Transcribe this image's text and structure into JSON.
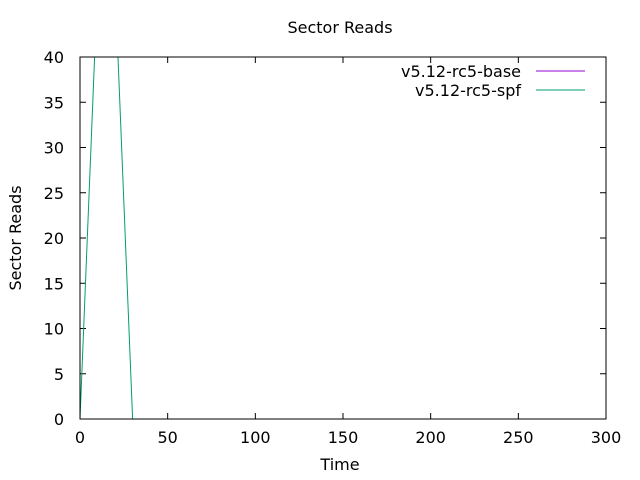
{
  "chart_data": {
    "type": "line",
    "title": "Sector Reads",
    "xlabel": "Time",
    "ylabel": "Sector Reads",
    "xlim": [
      0,
      300
    ],
    "ylim": [
      0,
      40
    ],
    "xticks": [
      0,
      50,
      100,
      150,
      200,
      250,
      300
    ],
    "yticks": [
      0,
      5,
      10,
      15,
      20,
      25,
      30,
      35,
      40
    ],
    "grid": false,
    "legend_position": "top-right",
    "series": [
      {
        "name": "v5.12-rc5-base",
        "color": "#9400d3",
        "x": [],
        "y": []
      },
      {
        "name": "v5.12-rc5-spf",
        "color": "#009e73",
        "x": [
          0,
          10,
          20,
          30,
          40,
          300
        ],
        "y": [
          0,
          48,
          48,
          0,
          0,
          0
        ]
      }
    ]
  }
}
